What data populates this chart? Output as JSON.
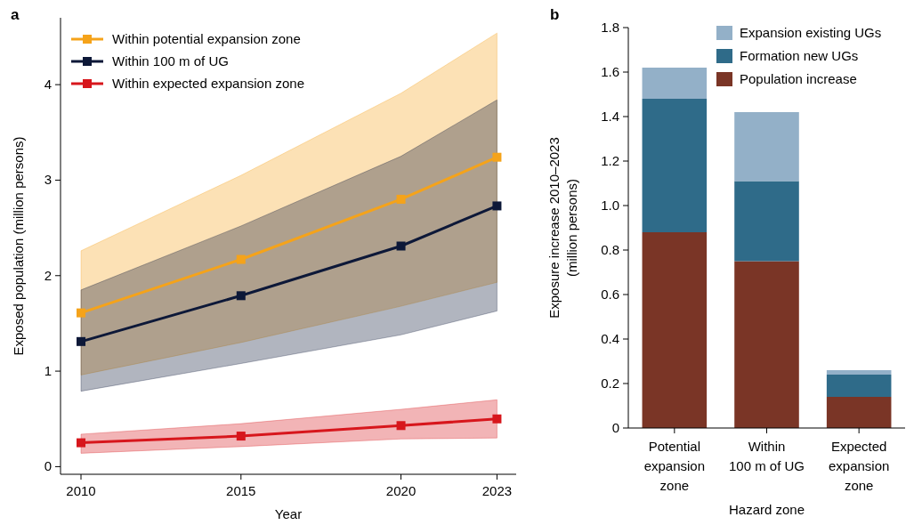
{
  "chart_data": [
    {
      "type": "line",
      "title": "a",
      "xlabel": "Year",
      "ylabel": "Exposed population (million persons)",
      "x": [
        2010,
        2015,
        2020,
        2023
      ],
      "xlim": [
        2009.36,
        2023.6
      ],
      "xticks": [
        2010,
        2015,
        2020,
        2023
      ],
      "ylim": [
        -0.08,
        4.7
      ],
      "yticks": [
        0,
        1,
        2,
        3,
        4
      ],
      "marker": "square",
      "legend": "top left",
      "grid": false,
      "series": [
        {
          "name": "Within potential expansion zone",
          "color": "#f5a31a",
          "values": [
            1.61,
            2.17,
            2.8,
            3.24
          ],
          "lower": [
            0.96,
            1.3,
            1.68,
            1.93
          ],
          "upper": [
            2.26,
            3.05,
            3.91,
            4.54
          ]
        },
        {
          "name": "Within 100 m of UG",
          "color": "#0d1838",
          "values": [
            1.31,
            1.79,
            2.31,
            2.73
          ],
          "lower": [
            0.79,
            1.08,
            1.38,
            1.63
          ],
          "upper": [
            1.85,
            2.52,
            3.25,
            3.84
          ]
        },
        {
          "name": "Within expected expansion zone",
          "color": "#d7161c",
          "values": [
            0.25,
            0.32,
            0.43,
            0.5
          ],
          "lower": [
            0.14,
            0.21,
            0.29,
            0.3
          ],
          "upper": [
            0.34,
            0.45,
            0.6,
            0.7
          ]
        }
      ]
    },
    {
      "type": "bar",
      "stacked": true,
      "title": "b",
      "xlabel": "Hazard zone",
      "ylabel": "Exposure increase 2010–2023\n(million persons)",
      "categories": [
        "Potential\nexpansion\nzone",
        "Within\n100 m of UG",
        "Expected\nexpansion\nzone"
      ],
      "ylim": [
        0,
        1.8
      ],
      "yticks": [
        0,
        {
          "value": 0.2,
          "label": "0.2"
        },
        {
          "value": 0.4,
          "label": "0.4"
        },
        {
          "value": 0.6,
          "label": "0.6"
        },
        {
          "value": 0.8,
          "label": "0.8"
        },
        {
          "value": 1,
          "label": "1.0"
        },
        {
          "value": 1.2,
          "label": "1.2"
        },
        {
          "value": 1.4,
          "label": "1.4"
        },
        {
          "value": 1.6,
          "label": "1.6"
        },
        {
          "value": 1.8,
          "label": "1.8"
        }
      ],
      "legend": "top right",
      "grid": false,
      "series": [
        {
          "name": "Population increase",
          "color": "#7a3526",
          "values": [
            0.88,
            0.75,
            0.14
          ]
        },
        {
          "name": "Formation new UGs",
          "color": "#2f6b89",
          "values": [
            0.6,
            0.36,
            0.1
          ]
        },
        {
          "name": "Expansion existing UGs",
          "color": "#93b0c8",
          "values": [
            0.14,
            0.31,
            0.02
          ]
        }
      ]
    }
  ]
}
